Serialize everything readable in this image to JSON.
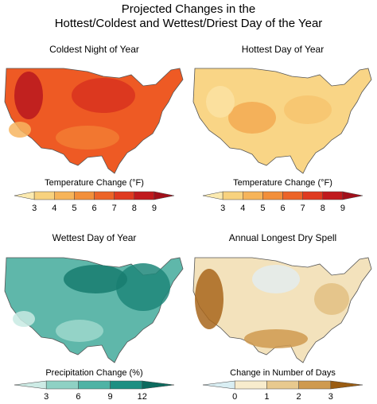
{
  "title_line1": "Projected Changes in the",
  "title_line2": "Hottest/Coldest and Wettest/Driest Day of the Year",
  "panels": [
    {
      "title": "Coldest Night of Year",
      "scale_label": "Temperature Change (°F)",
      "ticks": [
        "3",
        "4",
        "5",
        "6",
        "7",
        "8",
        "9"
      ],
      "colors": [
        "#fbeab0",
        "#f8d27e",
        "#f6b45a",
        "#f28f3a",
        "#ec6428",
        "#df3a20",
        "#c0191d",
        "#a10f1a"
      ],
      "base_color": "#ee5a24",
      "region_colors": [
        "#b9181f",
        "#d8331f",
        "#f27c32",
        "#f7b560"
      ]
    },
    {
      "title": "Hottest Day of Year",
      "scale_label": "Temperature Change (°F)",
      "ticks": [
        "3",
        "4",
        "5",
        "6",
        "7",
        "8",
        "9"
      ],
      "colors": [
        "#fbeab0",
        "#f8d27e",
        "#f6b45a",
        "#f28f3a",
        "#ec6428",
        "#df3a20",
        "#c0191d",
        "#a10f1a"
      ],
      "base_color": "#f9d586",
      "region_colors": [
        "#f3aa52",
        "#f7c46e",
        "#fbe2a2"
      ]
    },
    {
      "title": "Wettest Day of Year",
      "scale_label": "Precipitation Change (%)",
      "ticks": [
        "3",
        "6",
        "9",
        "12"
      ],
      "colors": [
        "#cdebe5",
        "#8ed1c4",
        "#4fb3a5",
        "#1d8f82",
        "#0c6a5e"
      ],
      "base_color": "#5fb7aa",
      "region_colors": [
        "#1f877a",
        "#177c70",
        "#9ed8cc",
        "#c8eae3"
      ]
    },
    {
      "title": "Annual Longest Dry Spell",
      "scale_label": "Change in Number of Days",
      "ticks": [
        "0",
        "1",
        "2",
        "3"
      ],
      "colors": [
        "#d9eef3",
        "#f8eccd",
        "#e8c98e",
        "#cf9a4f",
        "#9a5c12"
      ],
      "base_color": "#f3e2bc",
      "region_colors": [
        "#a8661c",
        "#cf9a50",
        "#e3ecef",
        "#e2bf82"
      ]
    }
  ]
}
